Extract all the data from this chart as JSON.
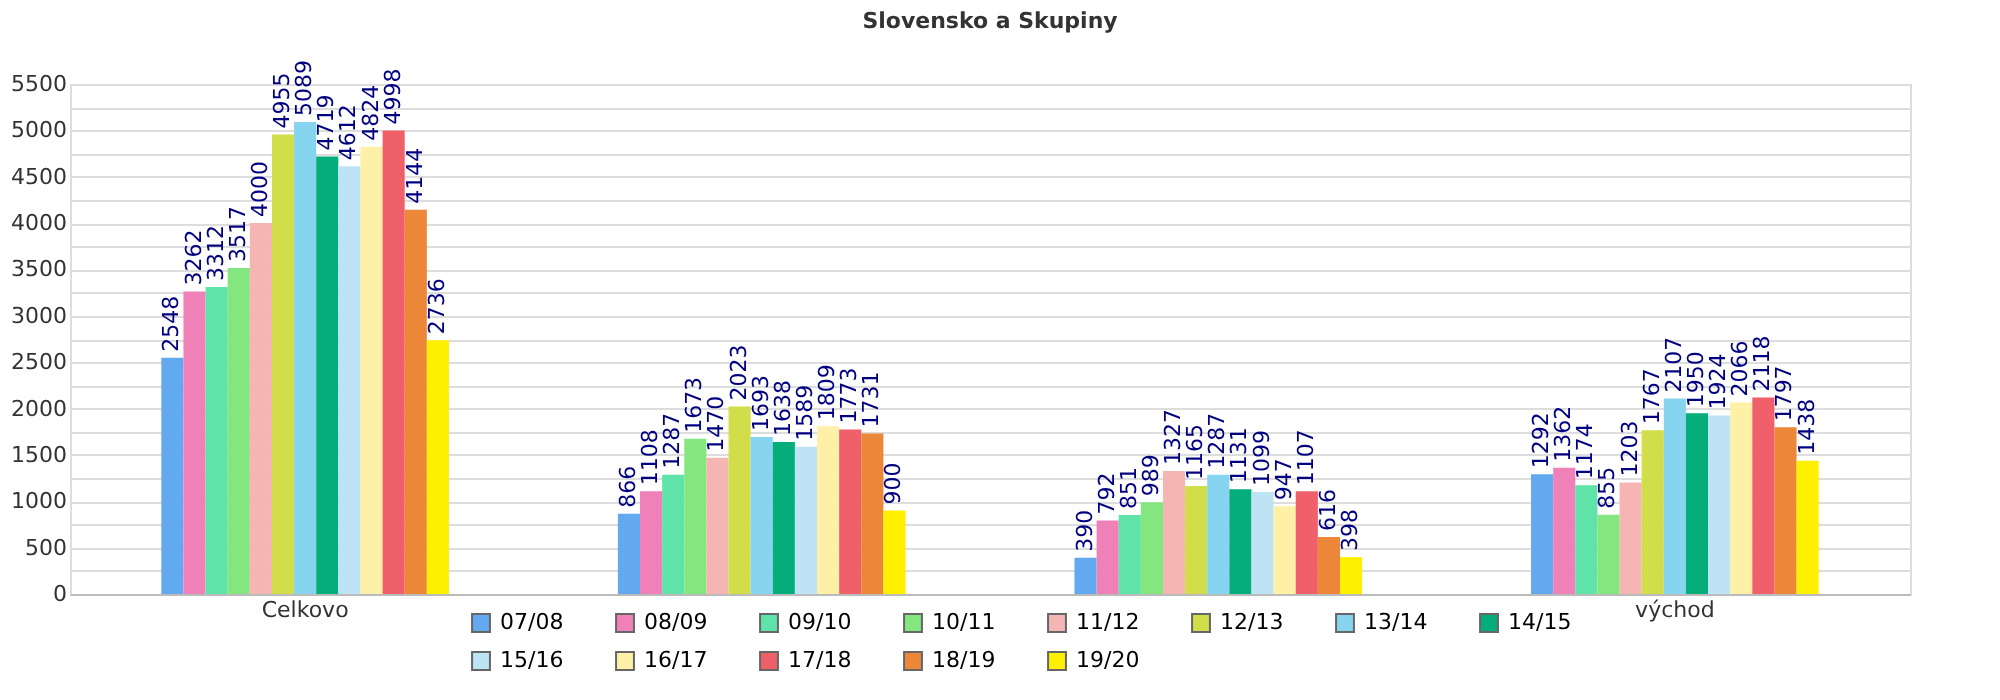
{
  "chart_data": {
    "type": "bar",
    "title": "Slovensko a Skupiny",
    "categories": [
      "Celkovo",
      null,
      null,
      "východ"
    ],
    "series": [
      {
        "name": "07/08",
        "color": "#63a9f0",
        "values": [
          2548,
          866,
          390,
          1292
        ]
      },
      {
        "name": "08/09",
        "color": "#f081b8",
        "values": [
          3262,
          1108,
          792,
          1362
        ]
      },
      {
        "name": "09/10",
        "color": "#5fe3a8",
        "values": [
          3312,
          1287,
          851,
          1174
        ]
      },
      {
        "name": "10/11",
        "color": "#84e67e",
        "values": [
          3517,
          1673,
          989,
          855
        ]
      },
      {
        "name": "11/12",
        "color": "#f5b5b3",
        "values": [
          4000,
          1470,
          1327,
          1203
        ]
      },
      {
        "name": "12/13",
        "color": "#d1de4a",
        "values": [
          4955,
          2023,
          1165,
          1767
        ]
      },
      {
        "name": "13/14",
        "color": "#87d4f0",
        "values": [
          5089,
          1693,
          1287,
          2107
        ]
      },
      {
        "name": "14/15",
        "color": "#05ad7a",
        "values": [
          4719,
          1638,
          1131,
          1950
        ]
      },
      {
        "name": "15/16",
        "color": "#bde3f5",
        "values": [
          4612,
          1589,
          1099,
          1924
        ]
      },
      {
        "name": "16/17",
        "color": "#fff0a8",
        "values": [
          4824,
          1809,
          947,
          2066
        ]
      },
      {
        "name": "17/18",
        "color": "#f0606a",
        "values": [
          4998,
          1773,
          1107,
          2118
        ]
      },
      {
        "name": "18/19",
        "color": "#ec8638",
        "values": [
          4144,
          1731,
          616,
          1797
        ]
      },
      {
        "name": "19/20",
        "color": "#fff000",
        "values": [
          2736,
          900,
          398,
          1438
        ]
      }
    ],
    "ylim": [
      0,
      5500
    ],
    "yticks": [
      0,
      {
        "value": 250,
        "label": null
      },
      500,
      {
        "value": 750,
        "label": null
      },
      1000,
      {
        "value": 1250,
        "label": null
      },
      1500,
      {
        "value": 1750,
        "label": null
      },
      2000,
      {
        "value": 2250,
        "label": null
      },
      2500,
      {
        "value": 2750,
        "label": null
      },
      3000,
      {
        "value": 3250,
        "label": null
      },
      3500,
      {
        "value": 3750,
        "label": null
      },
      4000,
      {
        "value": 4250,
        "label": null
      },
      4500,
      {
        "value": 4750,
        "label": null
      },
      5000,
      {
        "value": 5250,
        "label": null
      },
      5500
    ],
    "grid": true,
    "legend": "bottom",
    "data_labels": true
  }
}
